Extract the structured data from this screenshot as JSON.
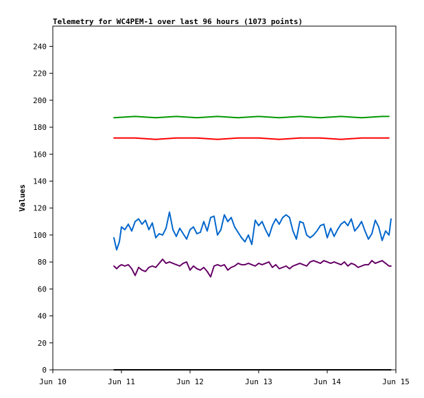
{
  "chart_data": {
    "type": "line",
    "title": "Telemetry for WC4PEM-1 over last 96 hours (1073 points)",
    "xlabel": "",
    "ylabel": "Values",
    "x_ticks": [
      "Jun 10",
      "Jun 11",
      "Jun 12",
      "Jun 13",
      "Jun 14",
      "Jun 15"
    ],
    "y_ticks": [
      0,
      20,
      40,
      60,
      80,
      100,
      120,
      140,
      160,
      180,
      200,
      220,
      240
    ],
    "xlim": [
      10,
      15
    ],
    "ylim": [
      0,
      255
    ],
    "grid": false,
    "legend": "none",
    "series": [
      {
        "color": "#009900",
        "x": [
          10.89,
          11.2,
          11.5,
          11.8,
          12.1,
          12.4,
          12.7,
          13.0,
          13.3,
          13.6,
          13.9,
          14.2,
          14.5,
          14.8,
          14.9
        ],
        "values": [
          187,
          188,
          187,
          188,
          187,
          188,
          187,
          188,
          187,
          188,
          187,
          188,
          187,
          188,
          188
        ]
      },
      {
        "color": "#ff0000",
        "x": [
          10.89,
          11.2,
          11.5,
          11.8,
          12.1,
          12.4,
          12.7,
          13.0,
          13.3,
          13.6,
          13.9,
          14.2,
          14.5,
          14.8,
          14.9
        ],
        "values": [
          172,
          172,
          171,
          172,
          172,
          171,
          172,
          172,
          171,
          172,
          172,
          171,
          172,
          172,
          172
        ]
      },
      {
        "color": "#0066cc",
        "x": [
          10.89,
          10.93,
          10.97,
          11.0,
          11.05,
          11.1,
          11.15,
          11.2,
          11.25,
          11.3,
          11.35,
          11.4,
          11.45,
          11.5,
          11.55,
          11.6,
          11.65,
          11.7,
          11.75,
          11.8,
          11.85,
          11.9,
          11.95,
          12.0,
          12.05,
          12.1,
          12.15,
          12.2,
          12.25,
          12.3,
          12.35,
          12.4,
          12.45,
          12.5,
          12.55,
          12.6,
          12.65,
          12.7,
          12.75,
          12.8,
          12.85,
          12.9,
          12.95,
          13.0,
          13.05,
          13.1,
          13.15,
          13.2,
          13.25,
          13.3,
          13.35,
          13.4,
          13.45,
          13.5,
          13.55,
          13.6,
          13.65,
          13.7,
          13.75,
          13.8,
          13.85,
          13.9,
          13.95,
          14.0,
          14.05,
          14.1,
          14.15,
          14.2,
          14.25,
          14.3,
          14.35,
          14.4,
          14.45,
          14.5,
          14.55,
          14.6,
          14.65,
          14.7,
          14.75,
          14.8,
          14.85,
          14.9,
          14.93
        ],
        "values": [
          98,
          89,
          95,
          106,
          104,
          108,
          103,
          110,
          112,
          108,
          111,
          104,
          109,
          98,
          101,
          100,
          105,
          117,
          104,
          99,
          105,
          101,
          97,
          104,
          106,
          101,
          102,
          110,
          103,
          113,
          114,
          100,
          104,
          115,
          110,
          113,
          106,
          102,
          98,
          95,
          100,
          93,
          111,
          107,
          110,
          104,
          99,
          107,
          112,
          108,
          113,
          115,
          113,
          103,
          97,
          110,
          109,
          100,
          98,
          100,
          103,
          107,
          108,
          98,
          105,
          99,
          104,
          108,
          110,
          107,
          112,
          103,
          106,
          110,
          103,
          97,
          101,
          111,
          106,
          96,
          103,
          100,
          112
        ]
      },
      {
        "color": "#660066",
        "x": [
          10.89,
          10.93,
          10.97,
          11.0,
          11.05,
          11.1,
          11.15,
          11.2,
          11.25,
          11.3,
          11.35,
          11.4,
          11.45,
          11.5,
          11.55,
          11.6,
          11.65,
          11.7,
          11.75,
          11.8,
          11.85,
          11.9,
          11.95,
          12.0,
          12.05,
          12.1,
          12.15,
          12.2,
          12.25,
          12.3,
          12.35,
          12.4,
          12.45,
          12.5,
          12.55,
          12.6,
          12.65,
          12.7,
          12.75,
          12.8,
          12.85,
          12.9,
          12.95,
          13.0,
          13.05,
          13.1,
          13.15,
          13.2,
          13.25,
          13.3,
          13.35,
          13.4,
          13.45,
          13.5,
          13.55,
          13.6,
          13.65,
          13.7,
          13.75,
          13.8,
          13.85,
          13.9,
          13.95,
          14.0,
          14.05,
          14.1,
          14.15,
          14.2,
          14.25,
          14.3,
          14.35,
          14.4,
          14.45,
          14.5,
          14.55,
          14.6,
          14.65,
          14.7,
          14.75,
          14.8,
          14.85,
          14.9,
          14.93
        ],
        "values": [
          77,
          75,
          77,
          78,
          77,
          78,
          75,
          70,
          76,
          74,
          73,
          76,
          77,
          76,
          79,
          82,
          79,
          80,
          79,
          78,
          77,
          79,
          80,
          74,
          77,
          75,
          74,
          76,
          73,
          69,
          77,
          78,
          77,
          78,
          74,
          76,
          77,
          79,
          78,
          78,
          79,
          78,
          77,
          79,
          78,
          79,
          80,
          76,
          78,
          75,
          76,
          77,
          75,
          77,
          78,
          79,
          78,
          77,
          80,
          81,
          80,
          79,
          81,
          80,
          79,
          80,
          79,
          78,
          80,
          77,
          79,
          78,
          76,
          77,
          78,
          78,
          81,
          79,
          80,
          81,
          79,
          77,
          77
        ]
      },
      {
        "color": "#000000",
        "x": [
          10.89,
          14.93
        ],
        "values": [
          0,
          0
        ]
      }
    ]
  }
}
